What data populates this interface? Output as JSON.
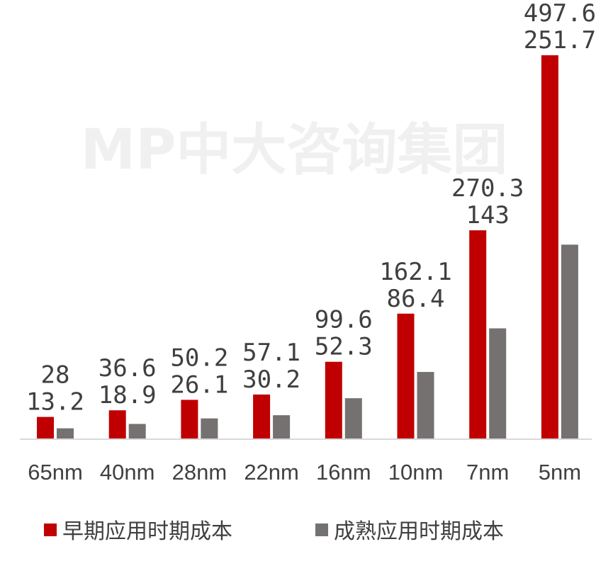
{
  "watermark": "MP中大咨询集团",
  "chart_data": {
    "type": "bar",
    "categories": [
      "65nm",
      "40nm",
      "28nm",
      "22nm",
      "16nm",
      "10nm",
      "7nm",
      "5nm"
    ],
    "series": [
      {
        "name": "早期应用时期成本",
        "color": "#c00000",
        "values": [
          28,
          36.6,
          50.2,
          57.1,
          99.6,
          162.1,
          270.3,
          497.6
        ]
      },
      {
        "name": "成熟应用时期成本",
        "color": "#767171",
        "values": [
          13.2,
          18.9,
          26.1,
          30.2,
          52.3,
          86.4,
          143,
          251.7
        ]
      }
    ],
    "ylim": [
      0,
      500
    ],
    "grid": false,
    "legend": "bottom",
    "data_labels": true
  }
}
